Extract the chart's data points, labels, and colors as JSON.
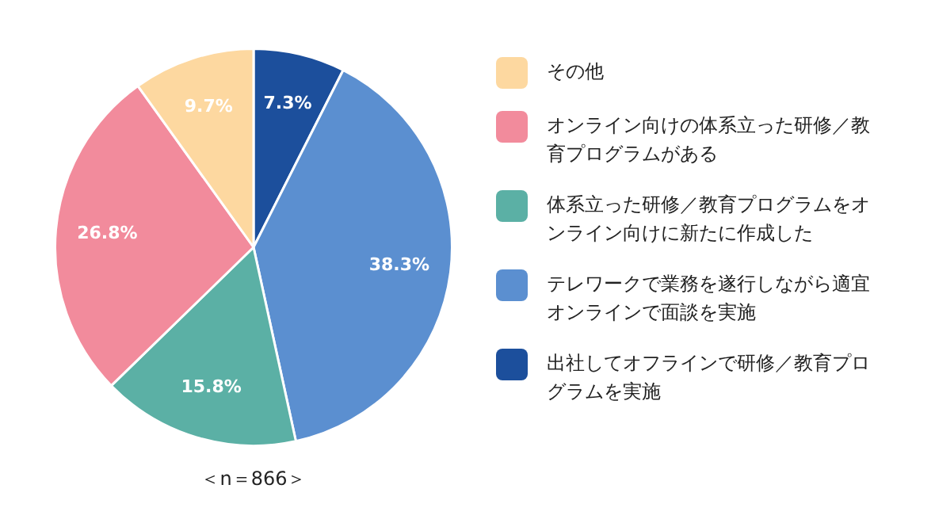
{
  "chart_data": {
    "type": "pie",
    "categories": [
      "出社してオフラインで研修／教育プログラムを実施",
      "テレワークで業務を遂行しながら適宜オンラインで面談を実施",
      "体系立った研修／教育プログラムをオンライン向けに新たに作成した",
      "オンライン向けの体系立った研修／教育プログラムがある",
      "その他"
    ],
    "values": [
      7.3,
      38.3,
      15.8,
      26.8,
      9.7
    ],
    "value_labels": [
      "7.3%",
      "38.3%",
      "15.8%",
      "26.8%",
      "9.7%"
    ],
    "colors": [
      "#1c4f9c",
      "#5b8fd0",
      "#5bb0a5",
      "#f28b9c",
      "#fdd8a0"
    ],
    "legend": "right",
    "annotations": [
      "＜n＝866＞"
    ]
  }
}
